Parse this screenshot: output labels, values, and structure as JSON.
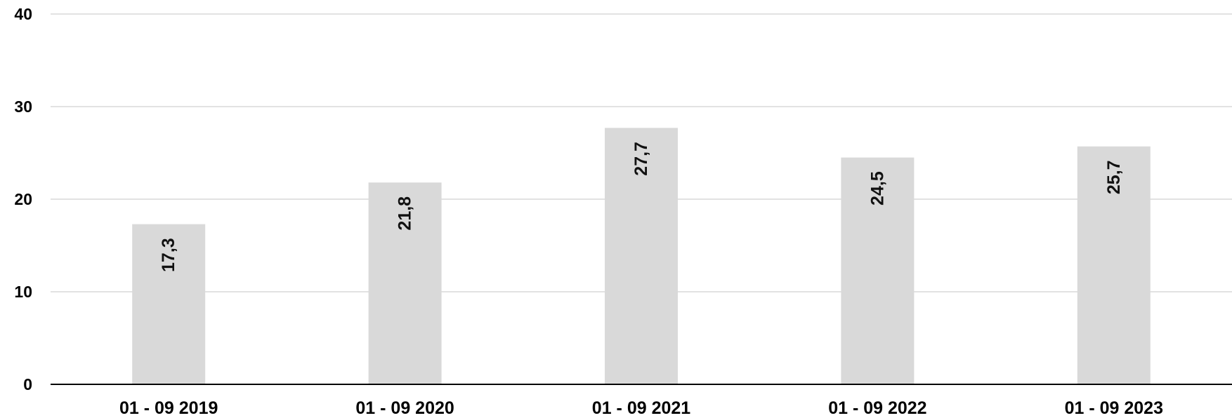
{
  "chart_data": {
    "type": "bar",
    "categories": [
      "01 - 09 2019",
      "01 - 09 2020",
      "01 - 09 2021",
      "01 - 09 2022",
      "01 - 09 2023"
    ],
    "values": [
      17.3,
      21.8,
      27.7,
      24.5,
      25.7
    ],
    "value_labels": [
      "17,3",
      "21,8",
      "27,7",
      "24,5",
      "25,7"
    ],
    "y_ticks": [
      "0",
      "10",
      "20",
      "30",
      "40"
    ],
    "ylim": [
      0,
      40
    ],
    "title": "",
    "xlabel": "",
    "ylabel": "",
    "grid": true,
    "legend": "none",
    "colors": {
      "bar": "#d9d9d9",
      "grid": "#d9d9d9",
      "axis": "#000000",
      "text": "#000000"
    }
  }
}
